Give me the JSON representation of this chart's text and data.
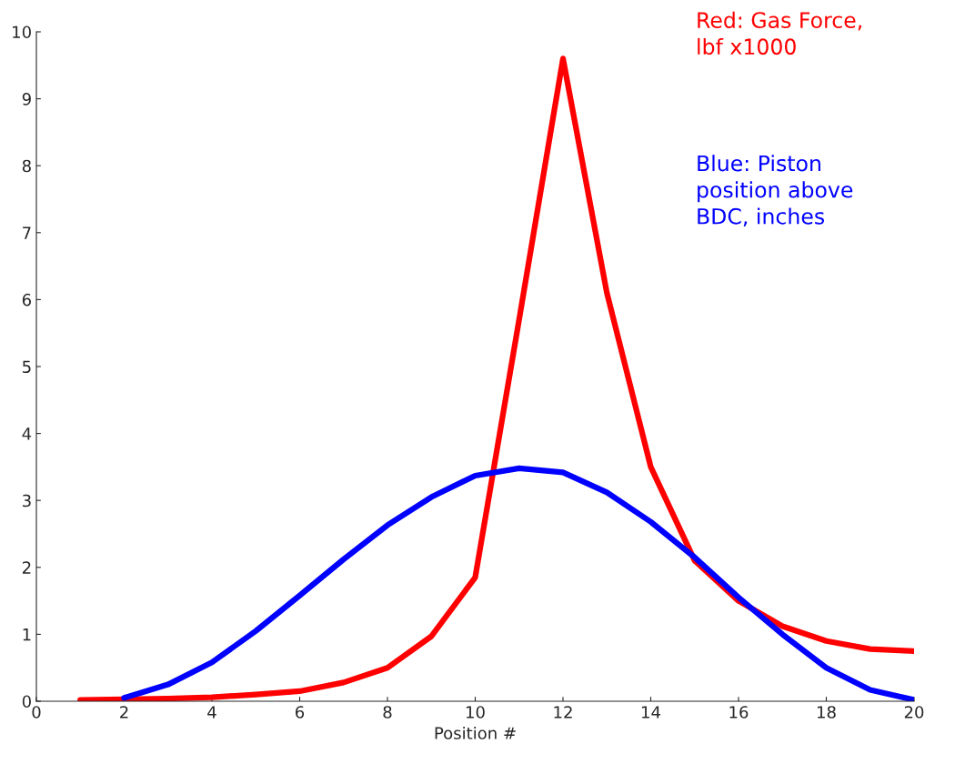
{
  "chart_data": {
    "type": "line",
    "xlabel": "Position #",
    "x": [
      1,
      2,
      3,
      4,
      5,
      6,
      7,
      8,
      9,
      10,
      11,
      12,
      13,
      14,
      15,
      16,
      17,
      18,
      19,
      20
    ],
    "series": [
      {
        "name": "Red: Gas Force,\nlbf x1000",
        "color": "#ff0000",
        "values": [
          0.02,
          0.03,
          0.04,
          0.06,
          0.1,
          0.15,
          0.28,
          0.5,
          0.97,
          1.85,
          5.7,
          9.6,
          6.1,
          3.5,
          2.1,
          1.5,
          1.12,
          0.9,
          0.78,
          0.75
        ]
      },
      {
        "name": "Blue: Piston\nposition above\nBDC, inches",
        "color": "#0000ff",
        "values": [
          null,
          0.05,
          0.25,
          0.58,
          1.05,
          1.58,
          2.12,
          2.63,
          3.05,
          3.37,
          3.48,
          3.42,
          3.12,
          2.68,
          2.15,
          1.55,
          1.0,
          0.5,
          0.17,
          0.02
        ]
      }
    ],
    "xlim": [
      0,
      20
    ],
    "xticks": [
      0,
      2,
      4,
      6,
      8,
      10,
      12,
      14,
      16,
      18,
      20
    ],
    "ylim": [
      0,
      10
    ],
    "yticks": [
      0,
      1,
      2,
      3,
      4,
      5,
      6,
      7,
      8,
      9,
      10
    ],
    "grid": false,
    "legend": "top right",
    "line_style": "solid",
    "marker": "none"
  }
}
